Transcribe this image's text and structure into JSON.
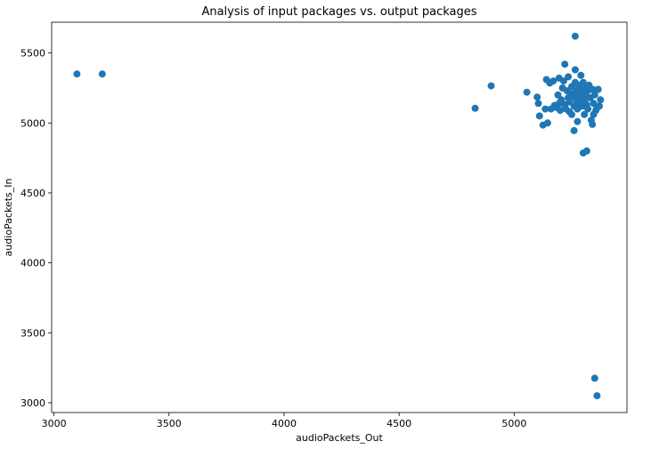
{
  "chart_data": {
    "type": "scatter",
    "title": "Analysis of input packages vs. output packages",
    "xlabel": "audioPackets_Out",
    "ylabel": "audioPackets_In",
    "xlim": [
      2990,
      5490
    ],
    "ylim": [
      2930,
      5720
    ],
    "xticks": [
      3000,
      3500,
      4000,
      4500,
      5000
    ],
    "yticks": [
      3000,
      3500,
      4000,
      4500,
      5000,
      5500
    ],
    "grid": false,
    "legend": "none",
    "marker_color": "#1f77b4",
    "points": [
      {
        "x": 3100,
        "y": 5350
      },
      {
        "x": 3210,
        "y": 5350
      },
      {
        "x": 4830,
        "y": 5105
      },
      {
        "x": 4900,
        "y": 5265
      },
      {
        "x": 5055,
        "y": 5220
      },
      {
        "x": 5100,
        "y": 5185
      },
      {
        "x": 5105,
        "y": 5140
      },
      {
        "x": 5110,
        "y": 5050
      },
      {
        "x": 5125,
        "y": 4985
      },
      {
        "x": 5135,
        "y": 5100
      },
      {
        "x": 5140,
        "y": 5310
      },
      {
        "x": 5145,
        "y": 5000
      },
      {
        "x": 5155,
        "y": 5285
      },
      {
        "x": 5170,
        "y": 5300
      },
      {
        "x": 5175,
        "y": 5125
      },
      {
        "x": 5185,
        "y": 5110
      },
      {
        "x": 5190,
        "y": 5200
      },
      {
        "x": 5195,
        "y": 5320
      },
      {
        "x": 5200,
        "y": 5090
      },
      {
        "x": 5205,
        "y": 5165
      },
      {
        "x": 5210,
        "y": 5250
      },
      {
        "x": 5215,
        "y": 5300
      },
      {
        "x": 5220,
        "y": 5420
      },
      {
        "x": 5220,
        "y": 5130
      },
      {
        "x": 5225,
        "y": 5100
      },
      {
        "x": 5230,
        "y": 5230
      },
      {
        "x": 5235,
        "y": 5180
      },
      {
        "x": 5240,
        "y": 5150
      },
      {
        "x": 5240,
        "y": 5080
      },
      {
        "x": 5245,
        "y": 5210
      },
      {
        "x": 5250,
        "y": 5260
      },
      {
        "x": 5250,
        "y": 5060
      },
      {
        "x": 5255,
        "y": 5190
      },
      {
        "x": 5260,
        "y": 5120
      },
      {
        "x": 5260,
        "y": 4945
      },
      {
        "x": 5265,
        "y": 5620
      },
      {
        "x": 5265,
        "y": 5380
      },
      {
        "x": 5265,
        "y": 5290
      },
      {
        "x": 5270,
        "y": 5230
      },
      {
        "x": 5270,
        "y": 5160
      },
      {
        "x": 5275,
        "y": 5100
      },
      {
        "x": 5275,
        "y": 5010
      },
      {
        "x": 5280,
        "y": 5270
      },
      {
        "x": 5280,
        "y": 5200
      },
      {
        "x": 5285,
        "y": 5140
      },
      {
        "x": 5290,
        "y": 5340
      },
      {
        "x": 5290,
        "y": 5240
      },
      {
        "x": 5295,
        "y": 5180
      },
      {
        "x": 5295,
        "y": 5120
      },
      {
        "x": 5300,
        "y": 5290
      },
      {
        "x": 5300,
        "y": 5210
      },
      {
        "x": 5300,
        "y": 4785
      },
      {
        "x": 5305,
        "y": 5160
      },
      {
        "x": 5305,
        "y": 5060
      },
      {
        "x": 5310,
        "y": 5250
      },
      {
        "x": 5310,
        "y": 5200
      },
      {
        "x": 5315,
        "y": 5130
      },
      {
        "x": 5315,
        "y": 4800
      },
      {
        "x": 5320,
        "y": 5230
      },
      {
        "x": 5320,
        "y": 5100
      },
      {
        "x": 5325,
        "y": 5270
      },
      {
        "x": 5330,
        "y": 5180
      },
      {
        "x": 5335,
        "y": 5020
      },
      {
        "x": 5340,
        "y": 5240
      },
      {
        "x": 5340,
        "y": 4990
      },
      {
        "x": 5345,
        "y": 5140
      },
      {
        "x": 5345,
        "y": 5060
      },
      {
        "x": 5350,
        "y": 5200
      },
      {
        "x": 5350,
        "y": 3175
      },
      {
        "x": 5355,
        "y": 5090
      },
      {
        "x": 5360,
        "y": 5110
      },
      {
        "x": 5360,
        "y": 3050
      },
      {
        "x": 5370,
        "y": 5120
      },
      {
        "x": 5375,
        "y": 5165
      },
      {
        "x": 5365,
        "y": 5240
      },
      {
        "x": 5235,
        "y": 5330
      },
      {
        "x": 5160,
        "y": 5100
      },
      {
        "x": 5195,
        "y": 5140
      }
    ]
  }
}
